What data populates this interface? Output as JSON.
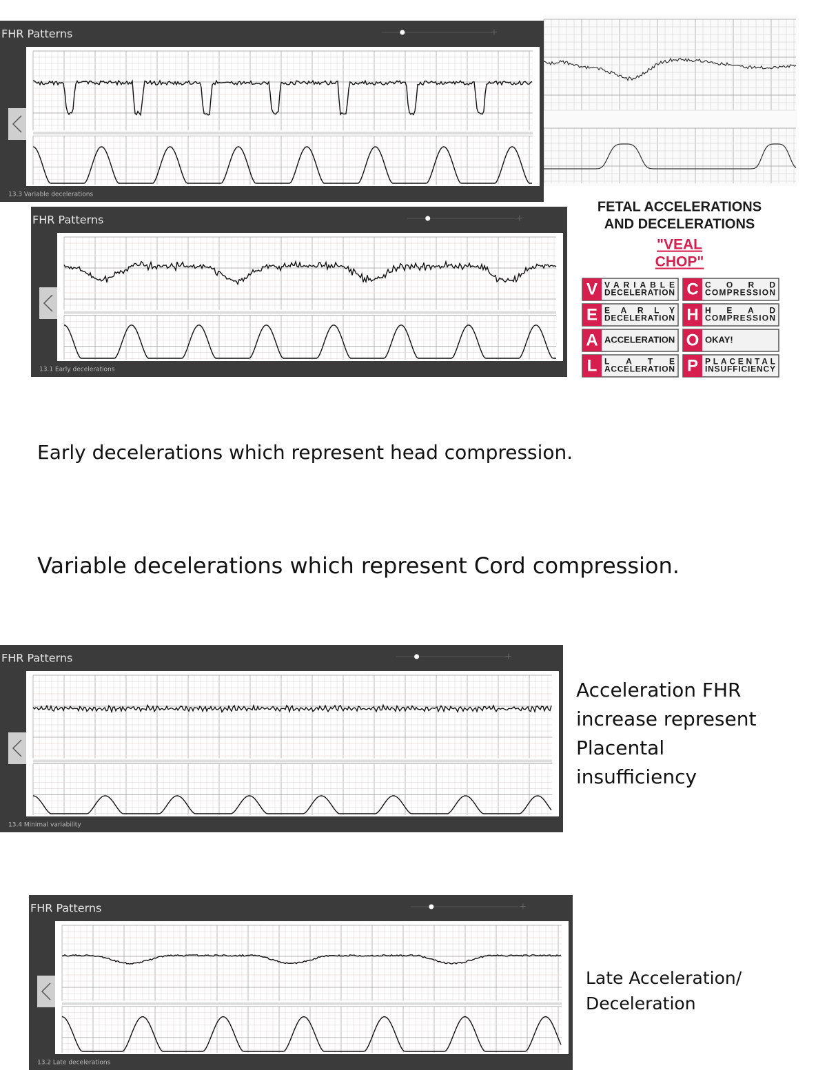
{
  "panels": [
    {
      "title": "FHR Patterns",
      "caption": "13.3 Variable decelerations"
    },
    {
      "title": "FHR Patterns",
      "caption": "13.1 Early decelerations"
    },
    {
      "title": "FHR Patterns",
      "caption": "13.4 Minimal variability"
    },
    {
      "title": "FHR Patterns",
      "caption": "13.2 Late decelerations"
    }
  ],
  "infographic": {
    "title": [
      "FETAL ACCELERATIONS",
      "AND DECELERATIONS"
    ],
    "mnemonic": [
      "\"VEAL",
      "CHOP\""
    ],
    "rows": [
      {
        "left": {
          "letter": "V",
          "label": [
            "VARIABLE",
            "DECELERATION"
          ]
        },
        "right": {
          "letter": "C",
          "label": [
            "CORD",
            "COMPRESSION"
          ]
        }
      },
      {
        "left": {
          "letter": "E",
          "label": [
            "EARLY",
            "DECELERATION"
          ]
        },
        "right": {
          "letter": "H",
          "label": [
            "HEAD",
            "COMPRESSION"
          ]
        }
      },
      {
        "left": {
          "letter": "A",
          "label": [
            "ACCELERATION"
          ]
        },
        "right": {
          "letter": "O",
          "label": [
            "OKAY!"
          ]
        }
      },
      {
        "left": {
          "letter": "L",
          "label": [
            "LATE",
            "ACCELERATION"
          ]
        },
        "right": {
          "letter": "P",
          "label": [
            "PLACENTAL",
            "INSUFFICIENCY"
          ]
        }
      }
    ]
  },
  "notes": [
    {
      "lines": [
        "Early decelerations which represent head compression."
      ]
    },
    {
      "lines": [
        "Variable decelerations which represent Cord compression."
      ]
    },
    {
      "lines": [
        "Acceleration FHR",
        "increase represent",
        "Placental",
        "insufficiency"
      ]
    },
    {
      "lines": [
        "Late Acceleration/",
        "Deceleration"
      ]
    }
  ]
}
